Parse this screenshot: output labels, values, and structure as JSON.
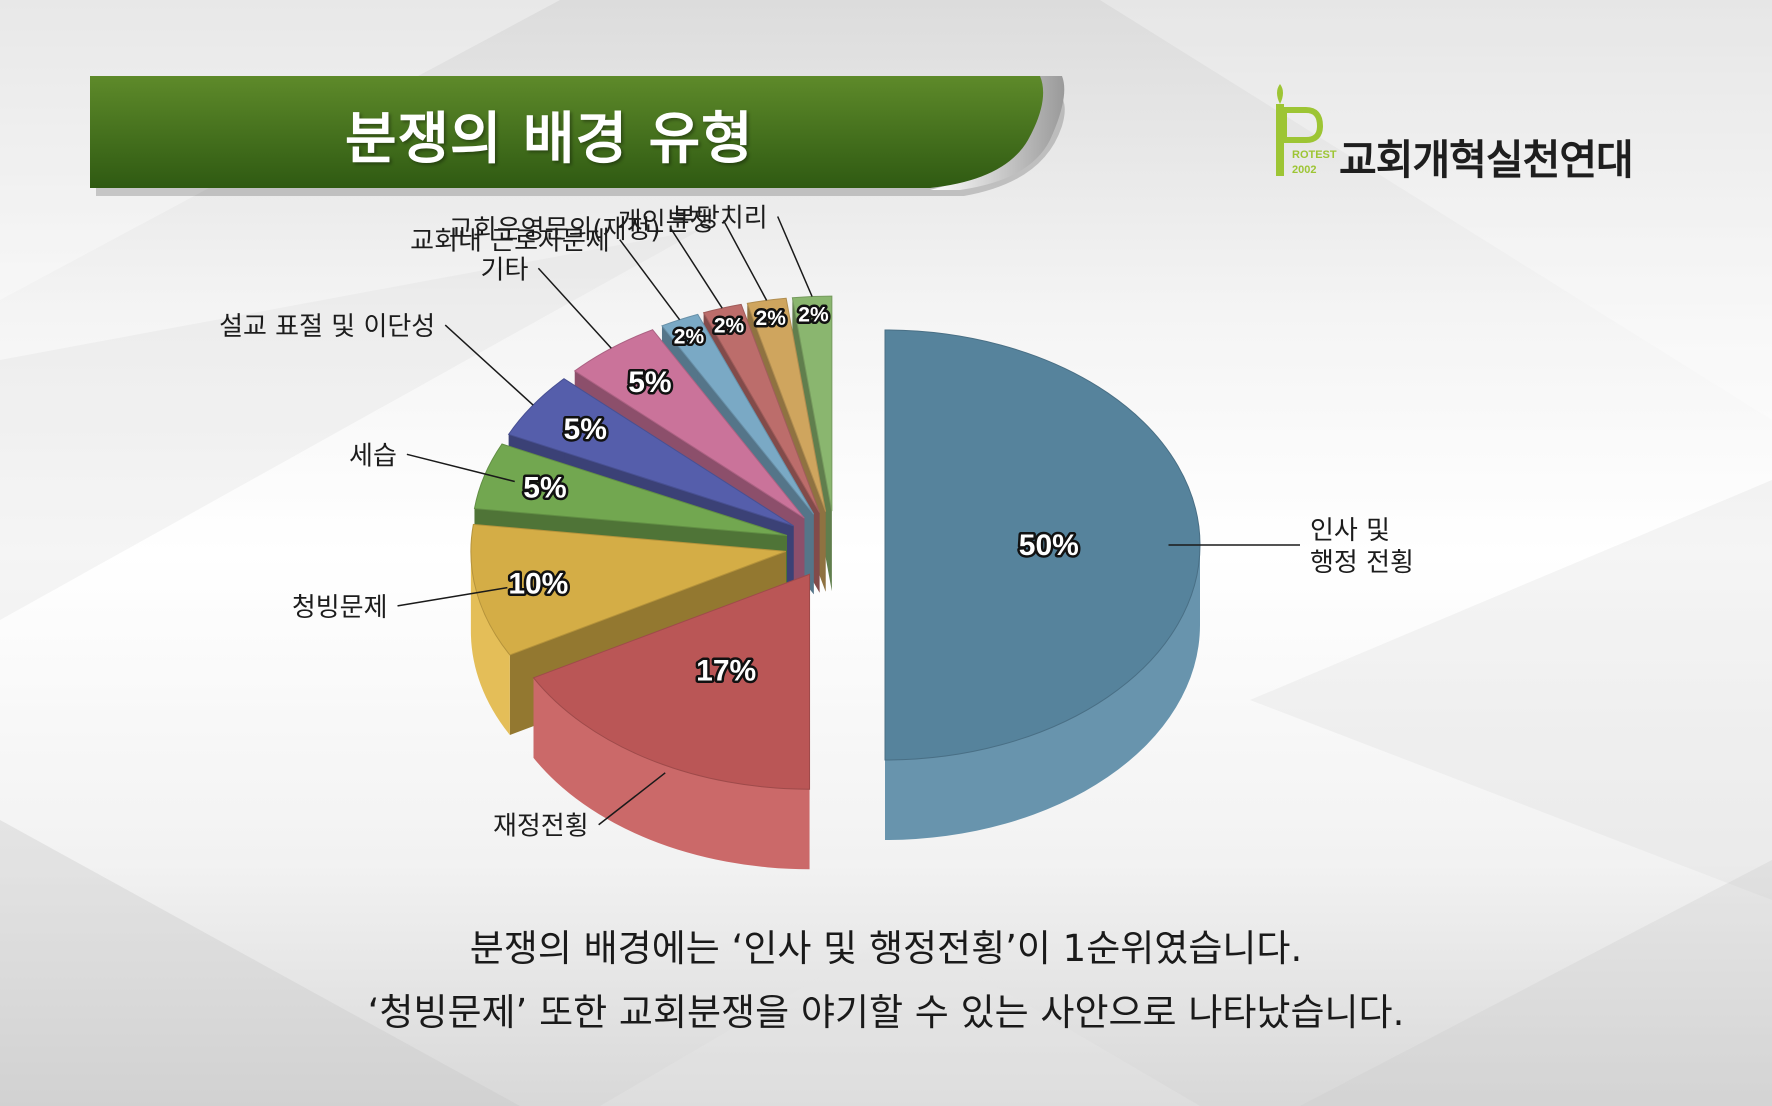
{
  "header": {
    "title": "분쟁의 배경 유형",
    "org_name": "교회개혁실천연대",
    "logo_text_top": "ROTEST",
    "logo_text_bottom": "2002"
  },
  "colors": {
    "banner_dark": "#2f5a12",
    "banner_light": "#5e8a2a",
    "logo_green": "#9dc534"
  },
  "chart_data": {
    "type": "pie",
    "title": "분쟁의 배경 유형",
    "unit": "%",
    "legend": "none",
    "slices": [
      {
        "label": "인사 및 행정 전횡",
        "label_lines": [
          "인사 및",
          "행정 전횡"
        ],
        "value": 50,
        "value_label": "50%",
        "color": "#5b8ba6"
      },
      {
        "label": "재정전횡",
        "label_lines": [
          "재정전횡"
        ],
        "value": 17,
        "value_label": "17%",
        "color": "#c65c5c"
      },
      {
        "label": "청빙문제",
        "label_lines": [
          "청빙문제"
        ],
        "value": 10,
        "value_label": "10%",
        "color": "#e2b84a"
      },
      {
        "label": "세습",
        "label_lines": [
          "세습"
        ],
        "value": 5,
        "value_label": "5%",
        "color": "#79b255"
      },
      {
        "label": "설교 표절 및 이단성",
        "label_lines": [
          "설교 표절 및 이단성"
        ],
        "value": 5,
        "value_label": "5%",
        "color": "#5a64b6"
      },
      {
        "label": "기타",
        "label_lines": [
          "기타"
        ],
        "value": 5,
        "value_label": "5%",
        "color": "#d77aa4"
      },
      {
        "label": "교회내 근로자문제",
        "label_lines": [
          "교회내 근로자문제"
        ],
        "value": 2,
        "value_label": "2%",
        "color": "#82b4d2"
      },
      {
        "label": "교회운영문의(재정)",
        "label_lines": [
          "교회운영문의(재정)"
        ],
        "value": 2,
        "value_label": "2%",
        "color": "#c87472"
      },
      {
        "label": "개인분쟁",
        "label_lines": [
          "개인분쟁"
        ],
        "value": 2,
        "value_label": "2%",
        "color": "#dcb064"
      },
      {
        "label": "부당치리",
        "label_lines": [
          "부당치리"
        ],
        "value": 2,
        "value_label": "2%",
        "color": "#93c276"
      }
    ]
  },
  "caption": {
    "line1": "분쟁의 배경에는 ‘인사 및 행정전횡’이 1순위였습니다.",
    "line2": "‘청빙문제’ 또한 교회분쟁을 야기할 수 있는 사안으로 나타났습니다."
  }
}
